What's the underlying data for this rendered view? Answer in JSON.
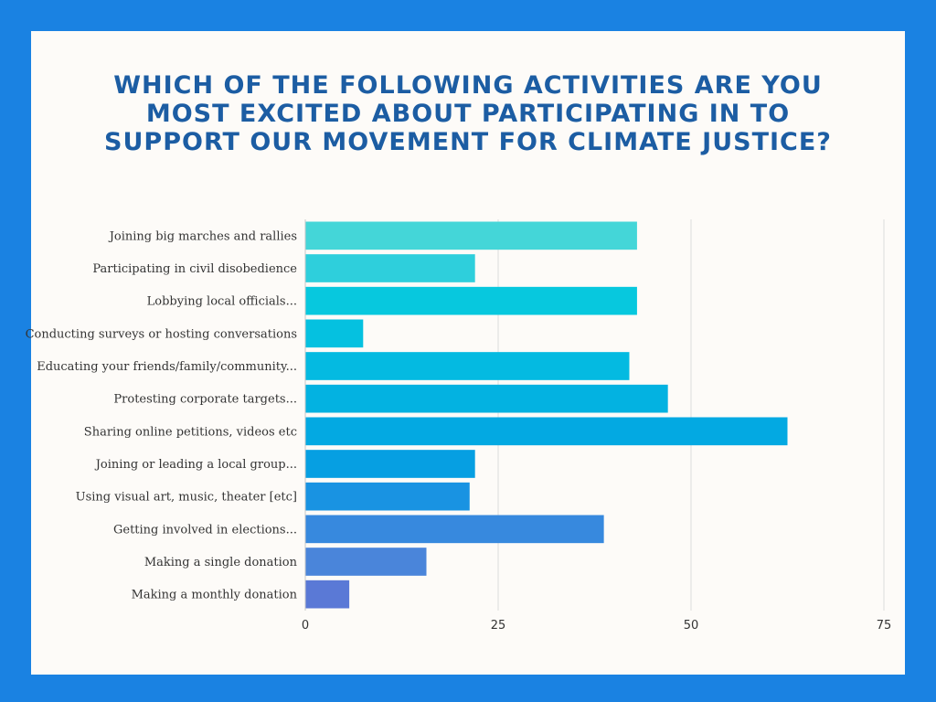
{
  "title_lines": [
    "WHICH OF THE FOLLOWING ACTIVITIES ARE YOU",
    "MOST EXCITED ABOUT PARTICIPATING IN TO",
    "SUPPORT OUR MOVEMENT FOR CLIMATE JUSTICE?"
  ],
  "colors": {
    "frame": "#1a82e2",
    "card": "#fdfbf8",
    "title": "#1c5da3",
    "grid": "#dcdcdc"
  },
  "chart_data": {
    "type": "bar",
    "orientation": "horizontal",
    "title": "WHICH OF THE FOLLOWING ACTIVITIES ARE YOU MOST EXCITED ABOUT PARTICIPATING IN TO SUPPORT OUR MOVEMENT FOR CLIMATE JUSTICE?",
    "xlabel": "",
    "ylabel": "",
    "xlim": [
      0,
      75
    ],
    "xticks": [
      0,
      25,
      50,
      75
    ],
    "grid": true,
    "categories": [
      "Joining big marches and rallies",
      "Participating in civil disobedience",
      "Lobbying local officials...",
      "Conducting surveys or hosting conversations",
      "Educating your friends/family/community...",
      "Protesting corporate targets...",
      "Sharing online petitions, videos etc",
      "Joining or leading a local group...",
      "Using visual art, music, theater [etc]",
      "Getting involved in elections...",
      "Making a single donation",
      "Making a monthly donation"
    ],
    "values": [
      43,
      22,
      43,
      7.5,
      42,
      47,
      62.5,
      22,
      21.3,
      38.7,
      15.7,
      5.7
    ],
    "bar_colors": [
      "#44d6d8",
      "#2ecfdc",
      "#07c8de",
      "#05c1e0",
      "#04bae1",
      "#03b2e1",
      "#03a9e2",
      "#069fe2",
      "#1993e2",
      "#3789de",
      "#4a85da",
      "#5a79d6"
    ]
  }
}
